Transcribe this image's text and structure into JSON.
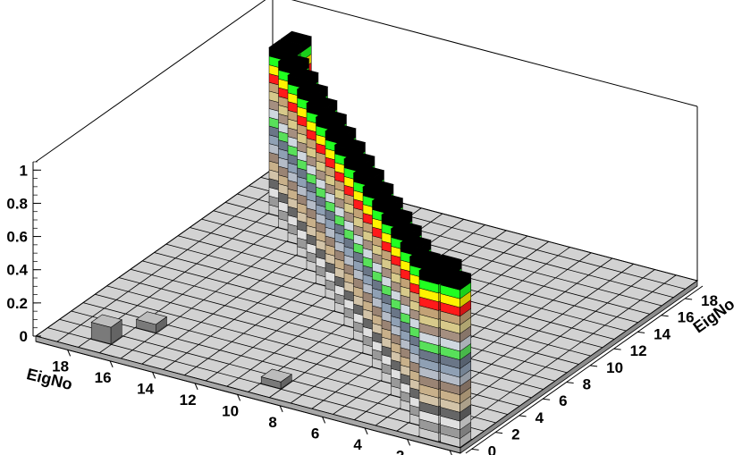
{
  "chart_data": {
    "type": "lego3d",
    "x_axis": {
      "label": "EigNo",
      "ticks": [
        "0",
        "2",
        "4",
        "6",
        "8",
        "10",
        "12",
        "14",
        "16",
        "18"
      ],
      "range": [
        0,
        20
      ]
    },
    "y_axis": {
      "label": "EigNo",
      "ticks": [
        "0",
        "2",
        "4",
        "6",
        "8",
        "10",
        "12",
        "14",
        "16",
        "18"
      ],
      "range": [
        0,
        20
      ]
    },
    "z_axis": {
      "ticks": [
        "0",
        "0.2",
        "0.4",
        "0.6",
        "0.8",
        "1"
      ],
      "range": [
        0,
        1.05
      ]
    },
    "grid": true,
    "towers": [
      {
        "i": 0,
        "j": 0,
        "value": 1.0
      },
      {
        "i": 1,
        "j": 0,
        "value": 1.0
      },
      {
        "i": 1,
        "j": 1,
        "value": 1.0
      },
      {
        "i": 2,
        "j": 1,
        "value": 1.0
      },
      {
        "i": 3,
        "j": 2,
        "value": 1.0
      },
      {
        "i": 4,
        "j": 3,
        "value": 1.0
      },
      {
        "i": 5,
        "j": 4,
        "value": 1.0
      },
      {
        "i": 6,
        "j": 5,
        "value": 1.0
      },
      {
        "i": 7,
        "j": 6,
        "value": 1.0
      },
      {
        "i": 8,
        "j": 7,
        "value": 1.0
      },
      {
        "i": 9,
        "j": 8,
        "value": 1.0
      },
      {
        "i": 10,
        "j": 9,
        "value": 1.0
      },
      {
        "i": 11,
        "j": 10,
        "value": 1.0
      },
      {
        "i": 12,
        "j": 11,
        "value": 1.0
      },
      {
        "i": 13,
        "j": 12,
        "value": 1.0
      },
      {
        "i": 14,
        "j": 13,
        "value": 1.0
      },
      {
        "i": 15,
        "j": 14,
        "value": 1.0
      },
      {
        "i": 16,
        "j": 15,
        "value": 1.0
      },
      {
        "i": 17,
        "j": 16,
        "value": 1.0
      },
      {
        "i": 17,
        "j": 17,
        "value": 1.0
      },
      {
        "i": 9,
        "j": 1,
        "value": 0.04
      },
      {
        "i": 16,
        "j": 3,
        "value": 0.05
      },
      {
        "i": 17,
        "j": 1,
        "value": 0.1
      }
    ],
    "palette": [
      "#cccccc",
      "#999999",
      "#e0e0e0",
      "#666666",
      "#d2c3a8",
      "#c8b08a",
      "#9a8474",
      "#b5bcc7",
      "#8fa0b4",
      "#6a7687",
      "#58e05a",
      "#cfd7de",
      "#a58f80",
      "#d7c98a",
      "#c2a276",
      "#ff1a1a",
      "#fff200",
      "#20ff20",
      "#000000"
    ]
  }
}
